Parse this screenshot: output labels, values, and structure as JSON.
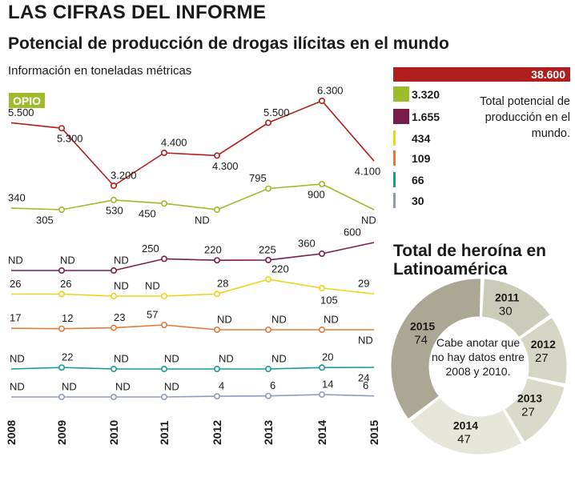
{
  "header": {
    "title": "LAS CIFRAS DEL INFORME",
    "subtitle": "Potencial de producción de drogas ilícitas en el mundo",
    "unit_note": "Información en toneladas métricas"
  },
  "opio_label": "OPIO",
  "chart_data": [
    {
      "type": "line",
      "title": "Potencial de producción de drogas ilícitas en el mundo",
      "ylabel": "toneladas métricas",
      "categories": [
        "2008",
        "2009",
        "2010",
        "2011",
        "2012",
        "2013",
        "2014",
        "2015"
      ],
      "series": [
        {
          "name": "opio",
          "color": "#b11e1e",
          "values": [
            5500,
            5300,
            3200,
            4400,
            4300,
            5500,
            6300,
            4100
          ],
          "labels": [
            "5.500",
            "5.300",
            "3.200",
            "4.400",
            "4.300",
            "5.500",
            "6.300",
            "4.100"
          ]
        },
        {
          "name": "serie 3.320",
          "color": "#9dbb2a",
          "values": [
            340,
            305,
            530,
            450,
            null,
            795,
            900,
            null
          ],
          "labels": [
            "340",
            "305",
            "530",
            "450",
            "ND",
            "795",
            "900",
            "ND"
          ]
        },
        {
          "name": "serie 1.655",
          "color": "#7a1d4b",
          "values": [
            null,
            null,
            null,
            250,
            220,
            225,
            360,
            600
          ],
          "labels": [
            "ND",
            "ND",
            "ND",
            "250",
            "220",
            "225",
            "360",
            "600"
          ]
        },
        {
          "name": "serie 434",
          "color": "#f2d21c",
          "values": [
            26,
            26,
            null,
            null,
            28,
            220,
            105,
            29
          ],
          "labels": [
            "26",
            "26",
            "ND",
            "ND",
            "28",
            "220",
            "105",
            "29"
          ]
        },
        {
          "name": "serie 109",
          "color": "#e07b39",
          "values": [
            17,
            12,
            23,
            57,
            null,
            null,
            null,
            null
          ],
          "labels": [
            "17",
            "12",
            "23",
            "57",
            "ND",
            "ND",
            "ND",
            "ND"
          ]
        },
        {
          "name": "serie 66",
          "color": "#1a9a9a",
          "values": [
            null,
            22,
            null,
            null,
            null,
            null,
            20,
            24
          ],
          "labels": [
            "ND",
            "22",
            "ND",
            "ND",
            "ND",
            "ND",
            "20",
            "24"
          ]
        },
        {
          "name": "serie 30",
          "color": "#8c9bc4",
          "values": [
            null,
            null,
            null,
            null,
            4,
            6,
            14,
            6
          ],
          "labels": [
            "ND",
            "ND",
            "ND",
            "ND",
            "4",
            "6",
            "14",
            "6"
          ]
        }
      ]
    },
    {
      "type": "pie",
      "title": "Total de heroína en Latinoamérica",
      "categories": [
        "2011",
        "2012",
        "2013",
        "2014",
        "2015"
      ],
      "values": [
        30,
        27,
        27,
        47,
        74
      ],
      "value_labels": [
        "30",
        "27",
        "27",
        "47",
        "74"
      ],
      "colors": [
        "#cbcbb9",
        "#d6d6c6",
        "#dadacb",
        "#e6e6da",
        "#aca795"
      ]
    }
  ],
  "legend": {
    "total_value": "38.600",
    "total_color": "#b11e1e",
    "items": [
      {
        "label": "3.320",
        "color": "#9dbb2a"
      },
      {
        "label": "1.655",
        "color": "#7a1d4b"
      },
      {
        "label": "434",
        "color": "#f2d21c"
      },
      {
        "label": "109",
        "color": "#e07b39"
      },
      {
        "label": "66",
        "color": "#1a9a9a"
      },
      {
        "label": "30",
        "color": "#8c9bc4"
      }
    ],
    "note": "Total potencial de producción en el mundo."
  },
  "heroina": {
    "title": "Total de heroína en Latinoamérica",
    "note": "Cabe anotar que no hay datos entre 2008 y 2010."
  }
}
